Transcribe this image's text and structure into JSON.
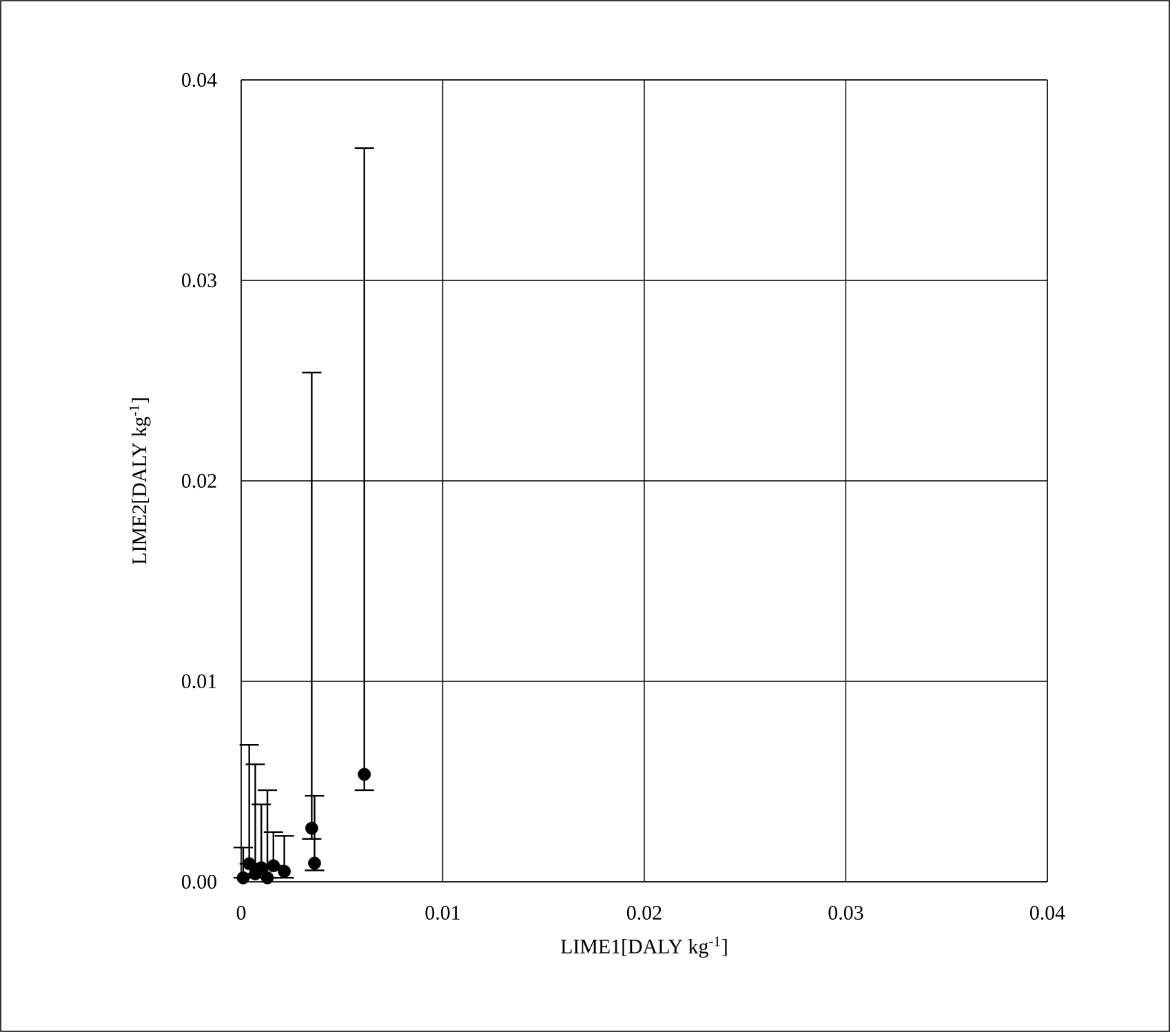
{
  "chart_data": {
    "type": "scatter",
    "xlabel": "LIME1[DALY kg$^{-1}$]",
    "ylabel": "LIME2[DALY kg$^{-1}$]",
    "x": [
      0.00611,
      0.0035,
      0.00364,
      0.00214,
      0.0001,
      0.0004,
      0.0007,
      0.001,
      0.0013,
      0.0016
    ],
    "values": [
      0.00536,
      0.00267,
      0.00093,
      0.00052,
      0.0002,
      0.0009,
      0.0004,
      0.0007,
      0.0002,
      0.0008
    ],
    "errors": [
      [
        0.00457,
        0.0366
      ],
      [
        0.00214,
        0.0254
      ],
      [
        0.00057,
        0.00429
      ],
      [
        0.0002,
        0.00229
      ],
      [
        0.0002,
        0.00171
      ],
      [
        0.0009,
        0.00683
      ],
      [
        0.0004,
        0.00586
      ],
      [
        0.0007,
        0.00386
      ],
      [
        0.0002,
        0.00457
      ],
      [
        0.0008,
        0.00248
      ]
    ],
    "color": "#000000",
    "marker": "circle",
    "xlim": [
      0,
      0.04
    ],
    "ylim": [
      0,
      0.04
    ],
    "xticks": [
      {
        "value": 0,
        "label": "0"
      },
      0.01,
      0.02,
      0.03,
      0.04
    ],
    "yticks": [
      {
        "value": 0,
        "label": "0.00"
      },
      0.01,
      0.02,
      0.03,
      0.04
    ],
    "grid": true
  }
}
